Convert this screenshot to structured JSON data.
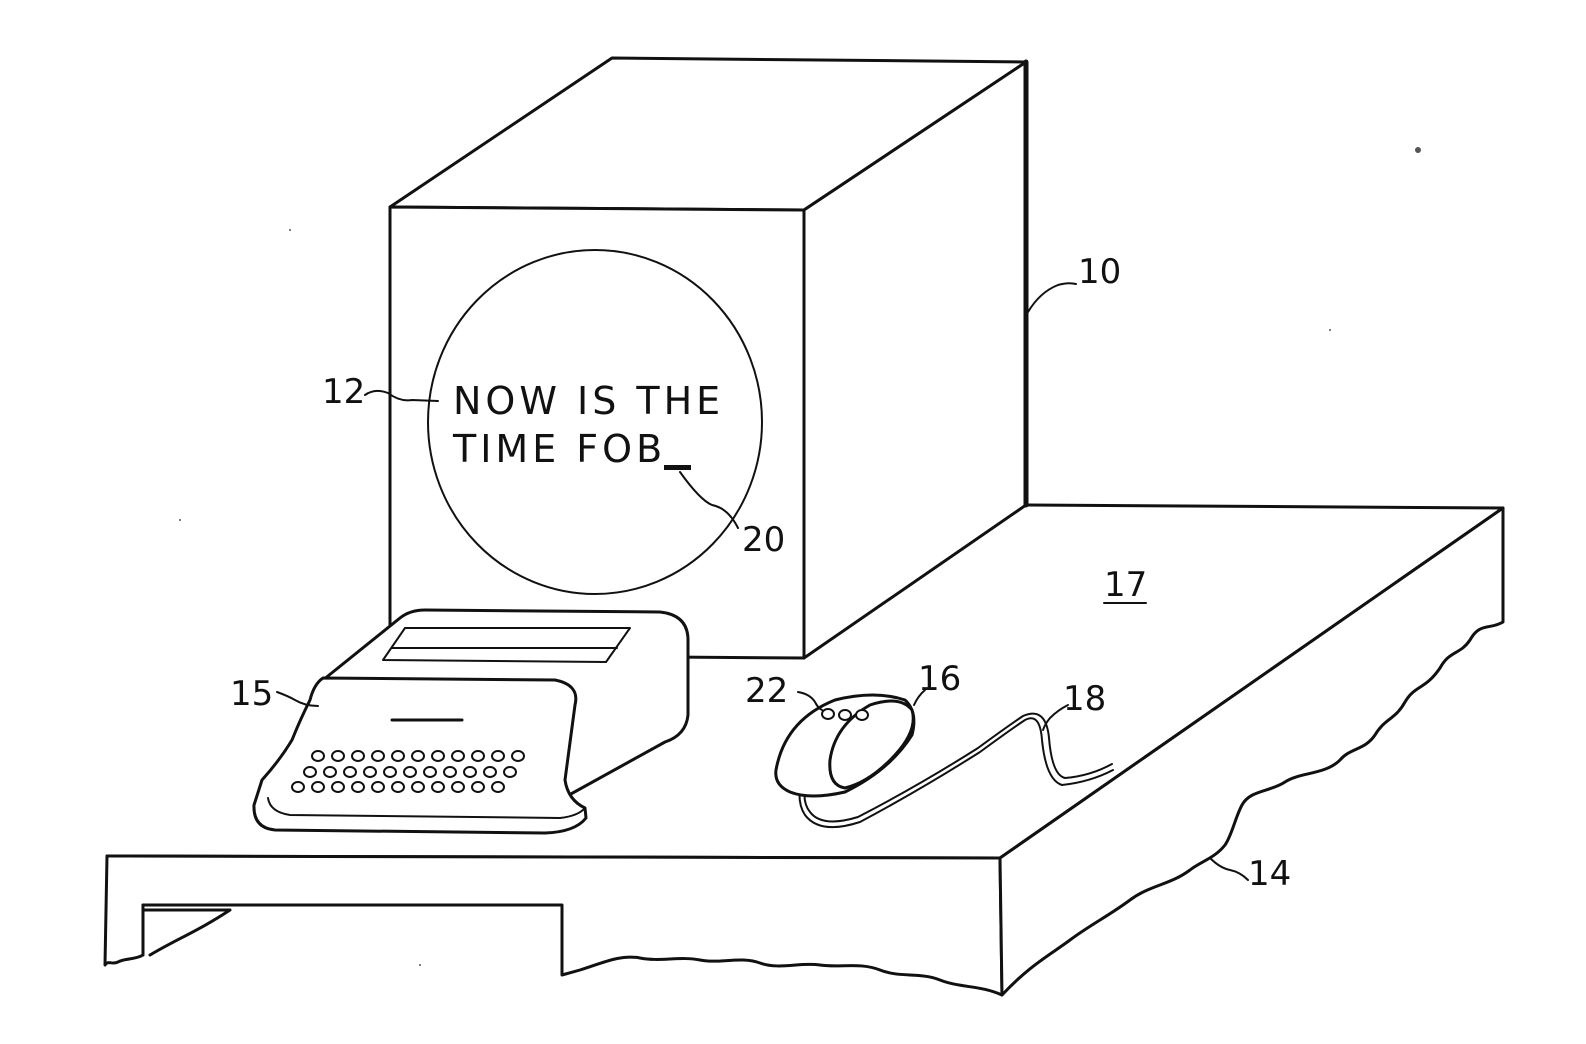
{
  "screen_text": {
    "line1": "NOW IS THE",
    "line2_prefix": "TIME FO",
    "line2_cursor_char": "B"
  },
  "reference_numerals": {
    "monitor": "10",
    "screen_text_ref": "12",
    "desk": "14",
    "keyboard": "15",
    "mouse": "16",
    "desk_surface": "17",
    "cord": "18",
    "cursor": "20",
    "mouse_buttons": "22"
  },
  "colors": {
    "ink": "#111111",
    "paper": "#ffffff"
  }
}
